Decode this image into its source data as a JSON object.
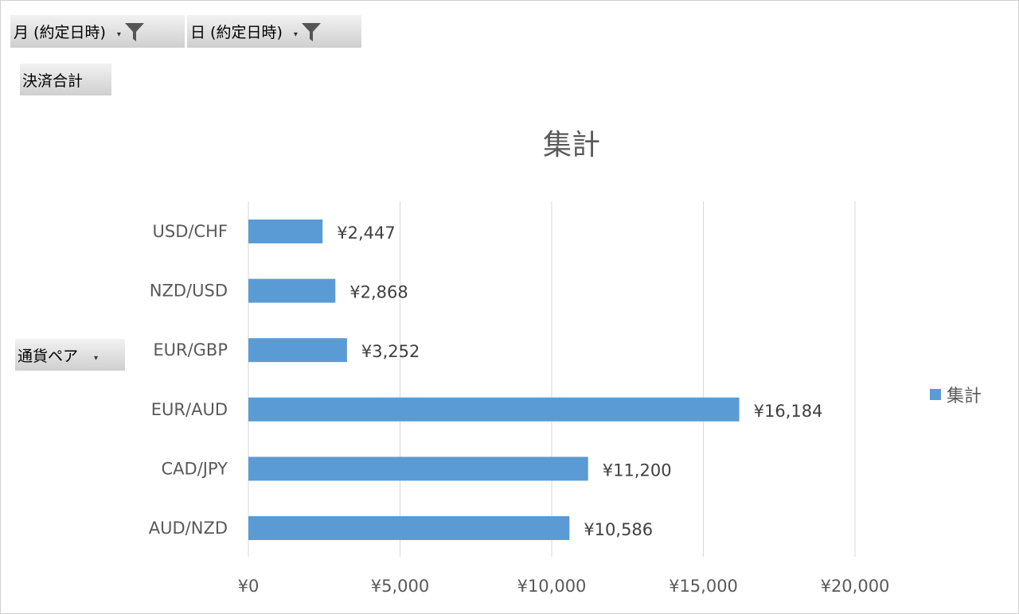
{
  "pivot_fields": {
    "month_label": "月 (約定日時)",
    "day_label": "日 (約定日時)",
    "value_label": "決済合計",
    "row_label": "通貨ペア"
  },
  "icons": [
    "dropdown-arrow-icon",
    "filter-icon"
  ],
  "colors": {
    "bar": "#5B9BD5",
    "grid": "#d9d9d9",
    "text": "#595959"
  },
  "chart_data": {
    "type": "bar",
    "orientation": "horizontal",
    "title": "集計",
    "categories": [
      "USD/CHF",
      "NZD/USD",
      "EUR/GBP",
      "EUR/AUD",
      "CAD/JPY",
      "AUD/NZD"
    ],
    "series": [
      {
        "name": "集計",
        "values": [
          2447,
          2868,
          3252,
          16184,
          11200,
          10586
        ]
      }
    ],
    "data_labels": [
      "¥2,447",
      "¥2,868",
      "¥3,252",
      "¥16,184",
      "¥11,200",
      "¥10,586"
    ],
    "x_ticks": [
      "¥0",
      "¥5,000",
      "¥10,000",
      "¥15,000",
      "¥20,000"
    ],
    "xlim": [
      0,
      20000
    ],
    "grid": true,
    "legend_position": "right"
  }
}
